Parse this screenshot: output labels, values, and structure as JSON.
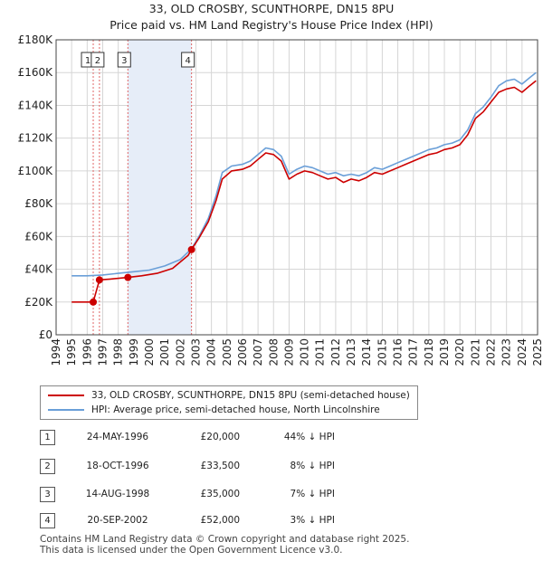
{
  "title_line1": "33, OLD CROSBY, SCUNTHORPE, DN15 8PU",
  "title_line2": "Price paid vs. HM Land Registry's House Price Index (HPI)",
  "chart_data": {
    "type": "line",
    "title": "33, OLD CROSBY, SCUNTHORPE, DN15 8PU — Price paid vs. HM Land Registry's House Price Index (HPI)",
    "xlabel": "",
    "ylabel": "",
    "xlim": [
      1994,
      2025
    ],
    "ylim": [
      0,
      180000
    ],
    "y_ticks": [
      0,
      20000,
      40000,
      60000,
      80000,
      100000,
      120000,
      140000,
      160000,
      180000
    ],
    "y_tick_labels": [
      "£0",
      "£20K",
      "£40K",
      "£60K",
      "£80K",
      "£100K",
      "£120K",
      "£140K",
      "£160K",
      "£180K"
    ],
    "x_ticks": [
      "1994",
      "1995",
      "1996",
      "1997",
      "1998",
      "1999",
      "2000",
      "2001",
      "2002",
      "2003",
      "2004",
      "2005",
      "2006",
      "2007",
      "2008",
      "2009",
      "2010",
      "2011",
      "2012",
      "2013",
      "2014",
      "2015",
      "2016",
      "2017",
      "2018",
      "2019",
      "2020",
      "2021",
      "2022",
      "2023",
      "2024",
      "2025"
    ],
    "grid": true,
    "highlight_band": [
      1998.62,
      2002.72
    ],
    "series": [
      {
        "name": "33, OLD CROSBY, SCUNTHORPE, DN15 8PU (semi-detached house)",
        "color": "#cc0000",
        "points": [
          [
            1995.0,
            20000
          ],
          [
            1996.39,
            20000
          ],
          [
            1996.79,
            33500
          ],
          [
            1997.5,
            34000
          ],
          [
            1998.62,
            35000
          ],
          [
            1999.5,
            36000
          ],
          [
            2000.5,
            37500
          ],
          [
            2001.5,
            40500
          ],
          [
            2002.5,
            48500
          ],
          [
            2002.72,
            52000
          ],
          [
            2003.2,
            59000
          ],
          [
            2003.8,
            69000
          ],
          [
            2004.3,
            82000
          ],
          [
            2004.7,
            95000
          ],
          [
            2005.3,
            100000
          ],
          [
            2006.0,
            101000
          ],
          [
            2006.5,
            103000
          ],
          [
            2007.0,
            107000
          ],
          [
            2007.5,
            111000
          ],
          [
            2008.0,
            110000
          ],
          [
            2008.5,
            106000
          ],
          [
            2009.0,
            95000
          ],
          [
            2009.5,
            98000
          ],
          [
            2010.0,
            100000
          ],
          [
            2010.5,
            99000
          ],
          [
            2011.0,
            97000
          ],
          [
            2011.5,
            95000
          ],
          [
            2012.0,
            96000
          ],
          [
            2012.5,
            93000
          ],
          [
            2013.0,
            95000
          ],
          [
            2013.5,
            94000
          ],
          [
            2014.0,
            96000
          ],
          [
            2014.5,
            99000
          ],
          [
            2015.0,
            98000
          ],
          [
            2015.5,
            100000
          ],
          [
            2016.0,
            102000
          ],
          [
            2016.5,
            104000
          ],
          [
            2017.0,
            106000
          ],
          [
            2017.5,
            108000
          ],
          [
            2018.0,
            110000
          ],
          [
            2018.5,
            111000
          ],
          [
            2019.0,
            113000
          ],
          [
            2019.5,
            114000
          ],
          [
            2020.0,
            116000
          ],
          [
            2020.5,
            122000
          ],
          [
            2021.0,
            132000
          ],
          [
            2021.5,
            136000
          ],
          [
            2022.0,
            142000
          ],
          [
            2022.5,
            148000
          ],
          [
            2023.0,
            150000
          ],
          [
            2023.5,
            151000
          ],
          [
            2024.0,
            148000
          ],
          [
            2024.5,
            152000
          ],
          [
            2024.9,
            155000
          ]
        ]
      },
      {
        "name": "HPI: Average price, semi-detached house, North Lincolnshire",
        "color": "#6a9fd8",
        "points": [
          [
            1995.0,
            36000
          ],
          [
            1996.0,
            36000
          ],
          [
            1997.0,
            36500
          ],
          [
            1998.0,
            37500
          ],
          [
            1999.0,
            38500
          ],
          [
            2000.0,
            39500
          ],
          [
            2001.0,
            42000
          ],
          [
            2002.0,
            46000
          ],
          [
            2002.72,
            52500
          ],
          [
            2003.2,
            60000
          ],
          [
            2003.8,
            71000
          ],
          [
            2004.3,
            85000
          ],
          [
            2004.7,
            99000
          ],
          [
            2005.3,
            103000
          ],
          [
            2006.0,
            104000
          ],
          [
            2006.5,
            106000
          ],
          [
            2007.0,
            110000
          ],
          [
            2007.5,
            114000
          ],
          [
            2008.0,
            113000
          ],
          [
            2008.5,
            109000
          ],
          [
            2009.0,
            98000
          ],
          [
            2009.5,
            101000
          ],
          [
            2010.0,
            103000
          ],
          [
            2010.5,
            102000
          ],
          [
            2011.0,
            100000
          ],
          [
            2011.5,
            98000
          ],
          [
            2012.0,
            99000
          ],
          [
            2012.5,
            97000
          ],
          [
            2013.0,
            98000
          ],
          [
            2013.5,
            97000
          ],
          [
            2014.0,
            99000
          ],
          [
            2014.5,
            102000
          ],
          [
            2015.0,
            101000
          ],
          [
            2015.5,
            103000
          ],
          [
            2016.0,
            105000
          ],
          [
            2016.5,
            107000
          ],
          [
            2017.0,
            109000
          ],
          [
            2017.5,
            111000
          ],
          [
            2018.0,
            113000
          ],
          [
            2018.5,
            114000
          ],
          [
            2019.0,
            116000
          ],
          [
            2019.5,
            117000
          ],
          [
            2020.0,
            119000
          ],
          [
            2020.5,
            125000
          ],
          [
            2021.0,
            135000
          ],
          [
            2021.5,
            139000
          ],
          [
            2022.0,
            145000
          ],
          [
            2022.5,
            152000
          ],
          [
            2023.0,
            155000
          ],
          [
            2023.5,
            156000
          ],
          [
            2024.0,
            153000
          ],
          [
            2024.5,
            157000
          ],
          [
            2024.9,
            160000
          ]
        ]
      }
    ],
    "sale_markers": [
      {
        "label": "1",
        "x": 1996.39,
        "y": 20000
      },
      {
        "label": "2",
        "x": 1996.79,
        "y": 33500
      },
      {
        "label": "3",
        "x": 1998.62,
        "y": 35000
      },
      {
        "label": "4",
        "x": 2002.72,
        "y": 52000
      }
    ]
  },
  "legend": {
    "property_label": "33, OLD CROSBY, SCUNTHORPE, DN15 8PU (semi-detached house)",
    "hpi_label": "HPI: Average price, semi-detached house, North Lincolnshire"
  },
  "sales": [
    {
      "num": "1",
      "date": "24-MAY-1996",
      "price": "£20,000",
      "hpi": "44% ↓ HPI"
    },
    {
      "num": "2",
      "date": "18-OCT-1996",
      "price": "£33,500",
      "hpi": "8% ↓ HPI"
    },
    {
      "num": "3",
      "date": "14-AUG-1998",
      "price": "£35,000",
      "hpi": "7% ↓ HPI"
    },
    {
      "num": "4",
      "date": "20-SEP-2002",
      "price": "£52,000",
      "hpi": "3% ↓ HPI"
    }
  ],
  "footer": {
    "line1": "Contains HM Land Registry data © Crown copyright and database right 2025.",
    "line2": "This data is licensed under the Open Government Licence v3.0."
  }
}
